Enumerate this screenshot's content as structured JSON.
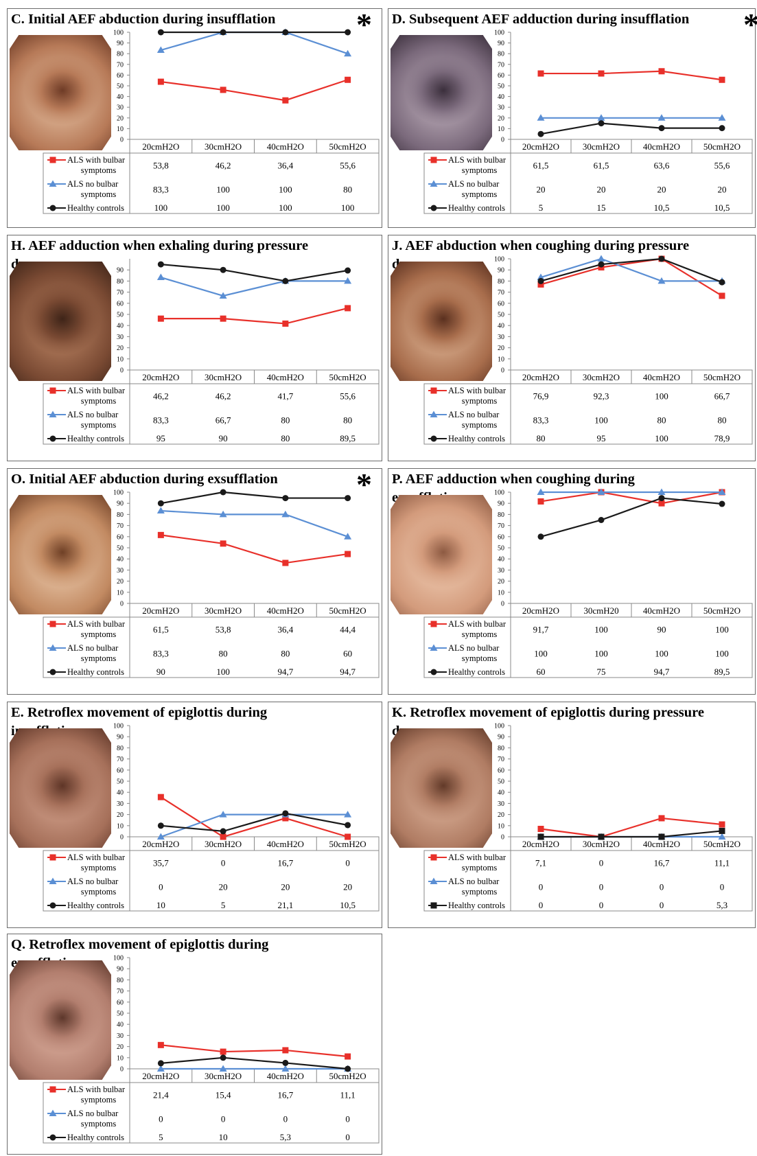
{
  "panels": [
    {
      "id": "C",
      "title": "C. Initial AEF abduction during insufflation",
      "star": "*",
      "photo": "laryngoscopy-photo",
      "chart_data": {
        "type": "line",
        "categories": [
          "20cmH2O",
          "30cmH2O",
          "40cmH2O",
          "50cmH2O"
        ],
        "ylim": [
          0,
          100
        ],
        "yticks": [
          0,
          10,
          20,
          30,
          40,
          50,
          60,
          70,
          80,
          90,
          100
        ],
        "series": [
          {
            "name": "ALS with bulbar symptoms",
            "color": "#e8302a",
            "marker": "square",
            "values": [
              53.8,
              46.2,
              36.4,
              55.6
            ],
            "labels": [
              "53,8",
              "46,2",
              "36,4",
              "55,6"
            ]
          },
          {
            "name": "ALS no bulbar symptoms",
            "color": "#5b8fd4",
            "marker": "triangle",
            "values": [
              83.3,
              100,
              100,
              80
            ],
            "labels": [
              "83,3",
              "100",
              "100",
              "80"
            ]
          },
          {
            "name": "Healthy controls",
            "color": "#1a1a1a",
            "marker": "circle",
            "values": [
              100,
              100,
              100,
              100
            ],
            "labels": [
              "100",
              "100",
              "100",
              "100"
            ]
          }
        ]
      }
    },
    {
      "id": "D",
      "title": "D. Subsequent AEF adduction during insufflation",
      "star": "*",
      "photo": "laryngoscopy-photo",
      "chart_data": {
        "type": "line",
        "categories": [
          "20cmH2O",
          "30cmH2O",
          "40cmH2O",
          "50cmH2O"
        ],
        "ylim": [
          0,
          100
        ],
        "yticks": [
          0,
          10,
          20,
          30,
          40,
          50,
          60,
          70,
          80,
          90,
          100
        ],
        "series": [
          {
            "name": "ALS with bulbar symptoms",
            "color": "#e8302a",
            "marker": "square",
            "values": [
              61.5,
              61.5,
              63.6,
              55.6
            ],
            "labels": [
              "61,5",
              "61,5",
              "63,6",
              "55,6"
            ]
          },
          {
            "name": "ALS no bulbar symptoms",
            "color": "#5b8fd4",
            "marker": "triangle",
            "values": [
              20,
              20,
              20,
              20
            ],
            "labels": [
              "20",
              "20",
              "20",
              "20"
            ]
          },
          {
            "name": "Healthy controls",
            "color": "#1a1a1a",
            "marker": "circle",
            "values": [
              5,
              15,
              10.5,
              10.5
            ],
            "labels": [
              "5",
              "15",
              "10,5",
              "10,5"
            ]
          }
        ]
      }
    },
    {
      "id": "H",
      "title": "H. AEF adduction when exhaling during pressure\ndrop",
      "star": "",
      "photo": "laryngoscopy-photo",
      "chart_data": {
        "type": "line",
        "categories": [
          "20cmH2O",
          "30cmH2O",
          "40cmH2O",
          "50cmH2O"
        ],
        "ylim": [
          0,
          100
        ],
        "yticks": [
          0,
          10,
          20,
          30,
          40,
          50,
          60,
          70,
          80,
          90
        ],
        "series": [
          {
            "name": "ALS with bulbar symptoms",
            "color": "#e8302a",
            "marker": "square",
            "values": [
              46.2,
              46.2,
              41.7,
              55.6
            ],
            "labels": [
              "46,2",
              "46,2",
              "41,7",
              "55,6"
            ]
          },
          {
            "name": "ALS no bulbar symptoms",
            "color": "#5b8fd4",
            "marker": "triangle",
            "values": [
              83.3,
              66.7,
              80,
              80
            ],
            "labels": [
              "83,3",
              "66,7",
              "80",
              "80"
            ]
          },
          {
            "name": "Healthy controls",
            "color": "#1a1a1a",
            "marker": "circle",
            "values": [
              95,
              90,
              80,
              89.5
            ],
            "labels": [
              "95",
              "90",
              "80",
              "89,5"
            ]
          }
        ]
      }
    },
    {
      "id": "J",
      "title": "J. AEF abduction when coughing during pressure\ndrop",
      "star": "",
      "photo": "laryngoscopy-photo",
      "chart_data": {
        "type": "line",
        "categories": [
          "20cmH2O",
          "30cmH2O",
          "40cmH2O",
          "50cmH2O"
        ],
        "ylim": [
          0,
          100
        ],
        "yticks": [
          0,
          10,
          20,
          30,
          40,
          50,
          60,
          70,
          80,
          90,
          100
        ],
        "series": [
          {
            "name": "ALS with bulbar symptoms",
            "color": "#e8302a",
            "marker": "square",
            "values": [
              76.9,
              92.3,
              100,
              66.7
            ],
            "labels": [
              "76,9",
              "92,3",
              "100",
              "66,7"
            ]
          },
          {
            "name": "ALS no bulbar symptoms",
            "color": "#5b8fd4",
            "marker": "triangle",
            "values": [
              83.3,
              100,
              80,
              80
            ],
            "labels": [
              "83,3",
              "100",
              "80",
              "80"
            ]
          },
          {
            "name": "Healthy controls",
            "color": "#1a1a1a",
            "marker": "circle",
            "values": [
              80,
              95,
              100,
              78.9
            ],
            "labels": [
              "80",
              "95",
              "100",
              "78,9"
            ]
          }
        ]
      }
    },
    {
      "id": "O",
      "title": "O. Initial AEF abduction during exsufflation",
      "star": "*",
      "photo": "laryngoscopy-photo",
      "chart_data": {
        "type": "line",
        "categories": [
          "20cmH2O",
          "30cmH2O",
          "40cmH2O",
          "50cmH2O"
        ],
        "ylim": [
          0,
          100
        ],
        "yticks": [
          0,
          10,
          20,
          30,
          40,
          50,
          60,
          70,
          80,
          90,
          100
        ],
        "series": [
          {
            "name": "ALS with bulbar symptoms",
            "color": "#e8302a",
            "marker": "square",
            "values": [
              61.5,
              53.8,
              36.4,
              44.4
            ],
            "labels": [
              "61,5",
              "53,8",
              "36,4",
              "44,4"
            ]
          },
          {
            "name": "ALS no bulbar symptoms",
            "color": "#5b8fd4",
            "marker": "triangle",
            "values": [
              83.3,
              80,
              80,
              60
            ],
            "labels": [
              "83,3",
              "80",
              "80",
              "60"
            ]
          },
          {
            "name": "Healthy controls",
            "color": "#1a1a1a",
            "marker": "circle",
            "values": [
              90,
              100,
              94.7,
              94.7
            ],
            "labels": [
              "90",
              "100",
              "94,7",
              "94,7"
            ]
          }
        ]
      }
    },
    {
      "id": "P",
      "title": "P. AEF adduction when coughing during\nexsufflation",
      "star": "",
      "photo": "laryngoscopy-photo",
      "chart_data": {
        "type": "line",
        "categories": [
          "20cmH2O",
          "30cmH20",
          "40cmH2O",
          "50cmH2O"
        ],
        "ylim": [
          0,
          100
        ],
        "yticks": [
          0,
          10,
          20,
          30,
          40,
          50,
          60,
          70,
          80,
          90,
          100
        ],
        "series": [
          {
            "name": "ALS with bulbar symptoms",
            "color": "#e8302a",
            "marker": "square",
            "values": [
              91.7,
              100,
              90,
              100
            ],
            "labels": [
              "91,7",
              "100",
              "90",
              "100"
            ]
          },
          {
            "name": "ALS no bulbar symptoms",
            "color": "#5b8fd4",
            "marker": "triangle",
            "values": [
              100,
              100,
              100,
              100
            ],
            "labels": [
              "100",
              "100",
              "100",
              "100"
            ]
          },
          {
            "name": "Healthy controls",
            "color": "#1a1a1a",
            "marker": "circle",
            "values": [
              60,
              75,
              94.7,
              89.5
            ],
            "labels": [
              "60",
              "75",
              "94,7",
              "89,5"
            ]
          }
        ]
      }
    },
    {
      "id": "E",
      "title": "E. Retroflex movement of  epiglottis during\ninsufflation",
      "star": "",
      "photo": "laryngoscopy-photo",
      "chart_data": {
        "type": "line",
        "categories": [
          "20cmH2O",
          "30cmH2O",
          "40cmH2O",
          "50cmH2O"
        ],
        "ylim": [
          0,
          100
        ],
        "yticks": [
          0,
          10,
          20,
          30,
          40,
          50,
          60,
          70,
          80,
          90,
          100
        ],
        "series": [
          {
            "name": "ALS with bulbar symptoms",
            "color": "#e8302a",
            "marker": "square",
            "values": [
              35.7,
              0,
              16.7,
              0
            ],
            "labels": [
              "35,7",
              "0",
              "16,7",
              "0"
            ]
          },
          {
            "name": "ALS no bulbar symptoms",
            "color": "#5b8fd4",
            "marker": "triangle",
            "values": [
              0,
              20,
              20,
              20
            ],
            "labels": [
              "0",
              "20",
              "20",
              "20"
            ]
          },
          {
            "name": "Healthy controls",
            "color": "#1a1a1a",
            "marker": "circle",
            "values": [
              10,
              5,
              21.1,
              10.5
            ],
            "labels": [
              "10",
              "5",
              "21,1",
              "10,5"
            ]
          }
        ]
      }
    },
    {
      "id": "K",
      "title": "K. Retroflex movement of epiglottis during pressure\ndrop",
      "star": "",
      "photo": "laryngoscopy-photo",
      "chart_data": {
        "type": "line",
        "categories": [
          "20cmH2O",
          "30cmH2O",
          "40cmH2O",
          "50cmH2O"
        ],
        "ylim": [
          0,
          100
        ],
        "yticks": [
          0,
          10,
          20,
          30,
          40,
          50,
          60,
          70,
          80,
          90,
          100
        ],
        "series": [
          {
            "name": "ALS with bulbar symptoms",
            "color": "#e8302a",
            "marker": "square",
            "values": [
              7.1,
              0,
              16.7,
              11.1
            ],
            "labels": [
              "7,1",
              "0",
              "16,7",
              "11,1"
            ]
          },
          {
            "name": "ALS no bulbar symptoms",
            "color": "#5b8fd4",
            "marker": "triangle",
            "values": [
              0,
              0,
              0,
              0
            ],
            "labels": [
              "0",
              "0",
              "0",
              "0"
            ]
          },
          {
            "name": "Healthy controls",
            "color": "#1a1a1a",
            "marker": "square",
            "values": [
              0,
              0,
              0,
              5.3
            ],
            "labels": [
              "0",
              "0",
              "0",
              "5,3"
            ]
          }
        ]
      }
    },
    {
      "id": "Q",
      "title": "Q. Retroflex movement of epiglottis during\nexsufflation",
      "star": "",
      "photo": "laryngoscopy-photo",
      "chart_data": {
        "type": "line",
        "categories": [
          "20cmH2O",
          "30cmH2O",
          "40cmH2O",
          "50cmH2O"
        ],
        "ylim": [
          0,
          100
        ],
        "yticks": [
          0,
          10,
          20,
          30,
          40,
          50,
          60,
          70,
          80,
          90,
          100
        ],
        "series": [
          {
            "name": "ALS with bulbar symptoms",
            "color": "#e8302a",
            "marker": "square",
            "values": [
              21.4,
              15.4,
              16.7,
              11.1
            ],
            "labels": [
              "21,4",
              "15,4",
              "16,7",
              "11,1"
            ]
          },
          {
            "name": "ALS no bulbar symptoms",
            "color": "#5b8fd4",
            "marker": "triangle",
            "values": [
              0,
              0,
              0,
              0
            ],
            "labels": [
              "0",
              "0",
              "0",
              "0"
            ]
          },
          {
            "name": "Healthy controls",
            "color": "#1a1a1a",
            "marker": "circle",
            "values": [
              5,
              10,
              5.3,
              0
            ],
            "labels": [
              "5",
              "10",
              "5,3",
              "0"
            ]
          }
        ]
      }
    }
  ],
  "legend_lines": {
    "ALS with bulbar symptoms": [
      "ALS with bulbar",
      "symptoms"
    ],
    "ALS no bulbar symptoms": [
      "ALS no bulbar",
      "symptoms"
    ],
    "Healthy controls": [
      "Healthy controls"
    ]
  }
}
